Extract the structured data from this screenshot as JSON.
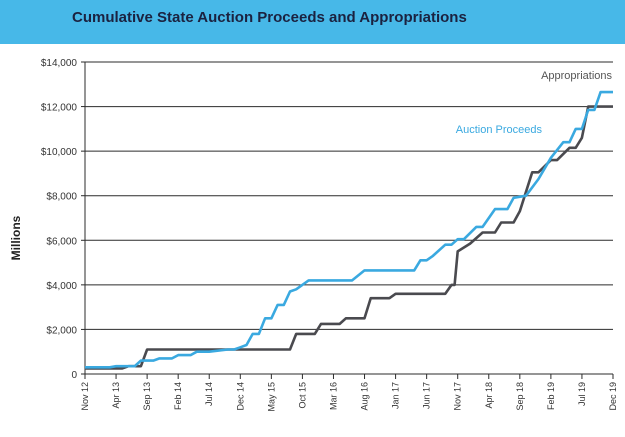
{
  "chart_data": {
    "type": "line",
    "title": "Cumulative State Auction Proceeds and Appropriations",
    "xlabel": "",
    "ylabel": "Millions",
    "x_categories": [
      "Nov 12",
      "Apr 13",
      "Sep 13",
      "Feb 14",
      "Jul 14",
      "Dec 14",
      "May 15",
      "Oct 15",
      "Mar 16",
      "Aug 16",
      "Jan 17",
      "Jun 17",
      "Nov 17",
      "Apr 18",
      "Sep 18",
      "Feb 19",
      "Jul 19",
      "Dec 19"
    ],
    "xlim": [
      0,
      85
    ],
    "ylim": [
      0,
      14000
    ],
    "y_ticks": [
      0,
      2000,
      4000,
      6000,
      8000,
      10000,
      12000,
      14000
    ],
    "y_tick_labels": [
      "0",
      "$2,000",
      "$4,000",
      "$6,000",
      "$8,000",
      "$10,000",
      "$12,000",
      "$14,000"
    ],
    "grid": "horizontal",
    "series": [
      {
        "name": "Appropriations",
        "color": "#4a4a4f",
        "x": [
          0,
          6,
          7,
          9,
          10,
          20,
          21,
          21.5,
          23,
          24,
          28,
          33,
          34,
          37,
          38,
          41,
          42,
          45,
          46,
          49,
          50,
          53,
          54,
          58,
          59,
          59.5,
          60,
          62,
          64,
          66,
          67,
          69,
          70,
          72,
          73,
          75,
          76,
          78,
          79,
          80,
          81,
          85
        ],
        "y": [
          250,
          250,
          350,
          350,
          1100,
          1100,
          1100,
          1100,
          1100,
          1100,
          1100,
          1100,
          1800,
          1800,
          2250,
          2250,
          2500,
          2500,
          3400,
          3400,
          3600,
          3600,
          3600,
          3600,
          4000,
          4000,
          5500,
          5850,
          6350,
          6350,
          6800,
          6800,
          7300,
          9050,
          9050,
          9600,
          9600,
          10150,
          10150,
          10600,
          12000,
          12000
        ]
      },
      {
        "name": "Auction Proceeds",
        "color": "#3aa9e0",
        "x": [
          0,
          4,
          5,
          8,
          9,
          11,
          12,
          14,
          15,
          17,
          18,
          20,
          23,
          24,
          25,
          26,
          27,
          28,
          29,
          30,
          31,
          32,
          33,
          34,
          36,
          37,
          39,
          41,
          43,
          45,
          47,
          49,
          51,
          53,
          54,
          55,
          56,
          58,
          59,
          60,
          61,
          63,
          64,
          66,
          67,
          68,
          69,
          71,
          73,
          75,
          77,
          78,
          79,
          80,
          81,
          82,
          83,
          84,
          85
        ],
        "y": [
          300,
          300,
          350,
          350,
          600,
          600,
          700,
          700,
          850,
          850,
          1000,
          1000,
          1100,
          1100,
          1200,
          1300,
          1800,
          1800,
          2500,
          2500,
          3100,
          3100,
          3700,
          3800,
          4200,
          4200,
          4200,
          4200,
          4200,
          4650,
          4650,
          4650,
          4650,
          4650,
          5100,
          5100,
          5300,
          5800,
          5800,
          6050,
          6050,
          6600,
          6600,
          7400,
          7400,
          7400,
          7900,
          8000,
          8750,
          9700,
          10400,
          10400,
          11000,
          11000,
          11850,
          11850,
          12650,
          12650,
          12650
        ]
      }
    ],
    "annotations": [
      "Appropriations",
      "Auction Proceeds"
    ]
  }
}
